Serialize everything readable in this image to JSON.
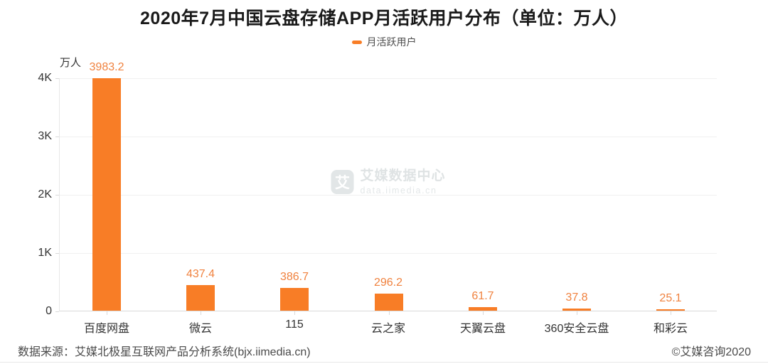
{
  "chart_data": {
    "type": "bar",
    "title": "2020年7月中国云盘存储APP月活跃用户分布（单位：万人）",
    "series_name": "月活跃用户",
    "unit_label": "万人",
    "categories": [
      "百度网盘",
      "微云",
      "115",
      "云之家",
      "天翼云盘",
      "360安全云盘",
      "和彩云"
    ],
    "values": [
      3983.2,
      437.4,
      386.7,
      296.2,
      61.7,
      37.8,
      25.1
    ],
    "value_labels": [
      "3983.2",
      "437.4",
      "386.7",
      "296.2",
      "61.7",
      "37.8",
      "25.1"
    ],
    "xlabel": "",
    "ylabel": "万人",
    "ylim": [
      0,
      4000
    ],
    "yticks": [
      {
        "value": 0,
        "label": "0"
      },
      {
        "value": 1000,
        "label": "1K"
      },
      {
        "value": 2000,
        "label": "2K"
      },
      {
        "value": 3000,
        "label": "3K"
      },
      {
        "value": 4000,
        "label": "4K"
      }
    ],
    "grid": true,
    "legend_position": "top-center"
  },
  "watermark": {
    "logo_char": "艾",
    "title": "艾媒数据中心",
    "url": "data.iimedia.cn"
  },
  "footer": {
    "source": "数据来源：艾媒北极星互联网产品分析系统(bjx.iimedia.cn)",
    "copyright": "©艾媒咨询2020"
  },
  "colors": {
    "bar": "#F87D26",
    "value_label": "#F0823F",
    "legend_marker": "#F87D26",
    "gridline": "#F0F0F0",
    "axis_line": "#D9D9D9",
    "axis_text": "#333333",
    "title_text": "#1A1A1A",
    "watermark_text": "#E2E6E7",
    "footer_text": "#4A4A4A"
  }
}
